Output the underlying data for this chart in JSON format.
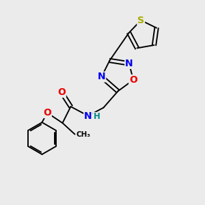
{
  "bg_color": "#ebebeb",
  "atom_colors": {
    "C": "#000000",
    "N": "#0000ee",
    "O": "#ee0000",
    "S": "#aaaa00",
    "H": "#008888"
  },
  "bond_color": "#000000",
  "figsize": [
    3.0,
    3.0
  ],
  "dpi": 100,
  "lw": 1.4,
  "fs": 10,
  "fs_small": 8.5
}
